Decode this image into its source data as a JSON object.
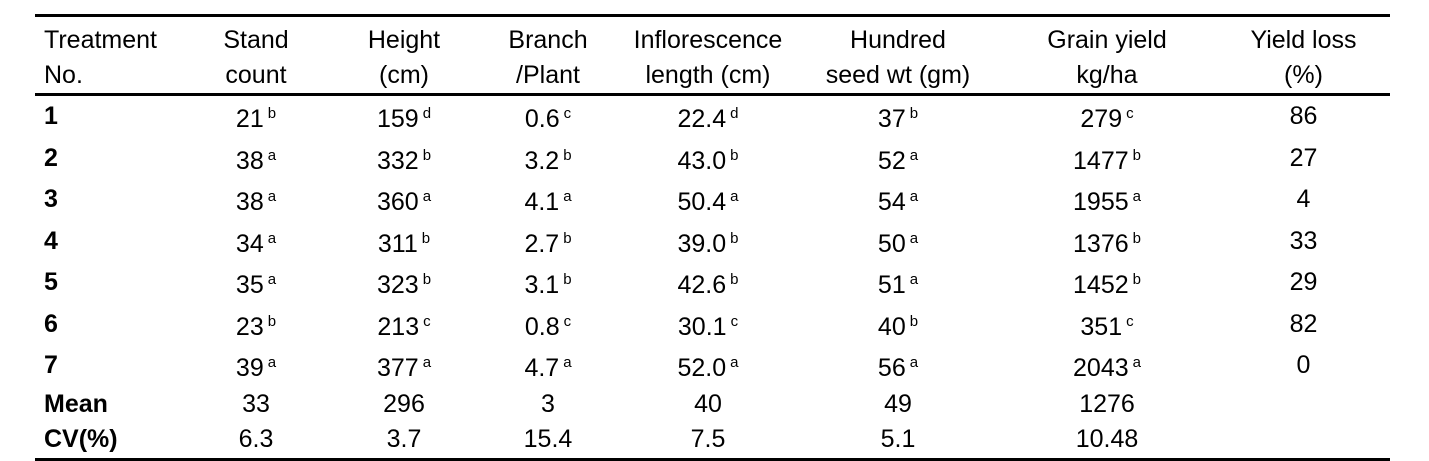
{
  "table": {
    "headers": [
      [
        "Treatment",
        "No."
      ],
      [
        "Stand",
        "count"
      ],
      [
        "Height",
        "(cm)"
      ],
      [
        "Branch",
        "/Plant"
      ],
      [
        "Inflorescence",
        "length (cm)"
      ],
      [
        "Hundred",
        "seed wt (gm)"
      ],
      [
        "Grain yield",
        "kg/ha"
      ],
      [
        "Yield loss",
        "(%)"
      ]
    ],
    "rows": [
      {
        "label": "1",
        "cells": [
          [
            "21",
            "b"
          ],
          [
            "159",
            "d"
          ],
          [
            "0.6",
            "c"
          ],
          [
            "22.4",
            "d"
          ],
          [
            "37",
            "b"
          ],
          [
            "279",
            "c"
          ],
          [
            "86",
            ""
          ]
        ]
      },
      {
        "label": "2",
        "cells": [
          [
            "38",
            "a"
          ],
          [
            "332",
            "b"
          ],
          [
            "3.2",
            "b"
          ],
          [
            "43.0",
            "b"
          ],
          [
            "52",
            "a"
          ],
          [
            "1477",
            "b"
          ],
          [
            "27",
            ""
          ]
        ]
      },
      {
        "label": "3",
        "cells": [
          [
            "38",
            "a"
          ],
          [
            "360",
            "a"
          ],
          [
            "4.1",
            "a"
          ],
          [
            "50.4",
            "a"
          ],
          [
            "54",
            "a"
          ],
          [
            "1955",
            "a"
          ],
          [
            "4",
            ""
          ]
        ]
      },
      {
        "label": "4",
        "cells": [
          [
            "34",
            "a"
          ],
          [
            "311",
            "b"
          ],
          [
            "2.7",
            "b"
          ],
          [
            "39.0",
            "b"
          ],
          [
            "50",
            "a"
          ],
          [
            "1376",
            "b"
          ],
          [
            "33",
            ""
          ]
        ]
      },
      {
        "label": "5",
        "cells": [
          [
            "35",
            "a"
          ],
          [
            "323",
            "b"
          ],
          [
            "3.1",
            "b"
          ],
          [
            "42.6",
            "b"
          ],
          [
            "51",
            "a"
          ],
          [
            "1452",
            "b"
          ],
          [
            "29",
            ""
          ]
        ]
      },
      {
        "label": "6",
        "cells": [
          [
            "23",
            "b"
          ],
          [
            "213",
            "c"
          ],
          [
            "0.8",
            "c"
          ],
          [
            "30.1",
            "c"
          ],
          [
            "40",
            "b"
          ],
          [
            "351",
            "c"
          ],
          [
            "82",
            ""
          ]
        ]
      },
      {
        "label": "7",
        "cells": [
          [
            "39",
            "a"
          ],
          [
            "377",
            "a"
          ],
          [
            "4.7",
            "a"
          ],
          [
            "52.0",
            "a"
          ],
          [
            "56",
            "a"
          ],
          [
            "2043",
            "a"
          ],
          [
            "0",
            ""
          ]
        ]
      },
      {
        "label": "Mean",
        "cells": [
          [
            "33",
            ""
          ],
          [
            "296",
            ""
          ],
          [
            "3",
            ""
          ],
          [
            "40",
            ""
          ],
          [
            "49",
            ""
          ],
          [
            "1276",
            ""
          ],
          [
            "",
            ""
          ]
        ]
      },
      {
        "label": "CV(%)",
        "cells": [
          [
            "6.3",
            ""
          ],
          [
            "3.7",
            ""
          ],
          [
            "15.4",
            ""
          ],
          [
            "7.5",
            ""
          ],
          [
            "5.1",
            ""
          ],
          [
            "10.48",
            ""
          ],
          [
            "",
            ""
          ]
        ]
      }
    ]
  }
}
